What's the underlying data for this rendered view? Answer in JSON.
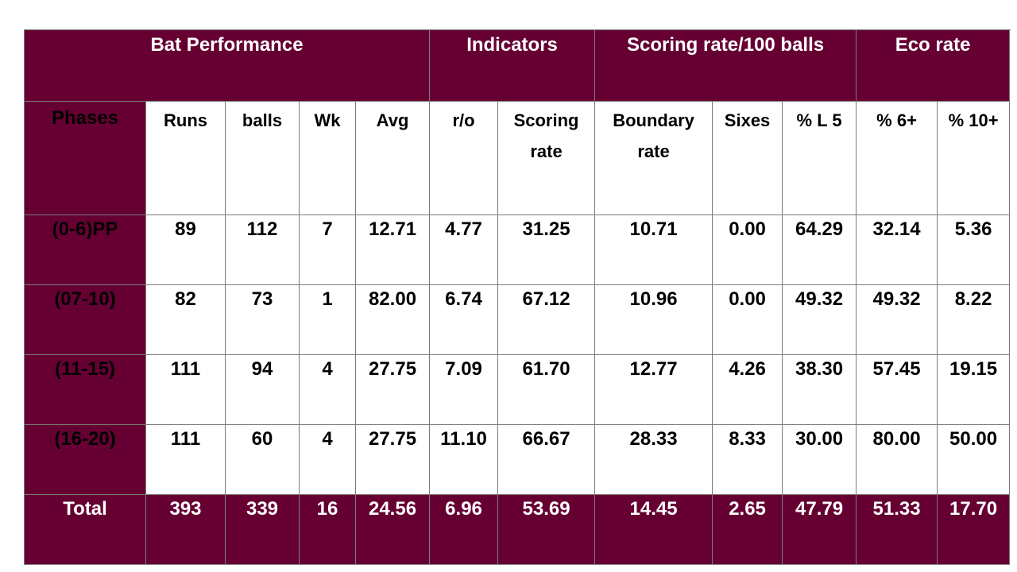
{
  "colors": {
    "header_bg": "#660033",
    "header_text": "#ffffff",
    "body_bg": "#ffffff",
    "body_text": "#000000"
  },
  "group_headers": [
    "Bat Performance",
    "Indicators",
    "Scoring rate/100 balls",
    "Eco rate"
  ],
  "column_headers": [
    "Phases",
    "Runs",
    "balls",
    "Wk",
    "Avg",
    "r/o",
    "Scoring rate",
    "Boundary rate",
    "Sixes",
    "% L 5",
    "% 6+",
    "% 10+"
  ],
  "rows": [
    [
      "(0-6)PP",
      "89",
      "112",
      "7",
      "12.71",
      "4.77",
      "31.25",
      "10.71",
      "0.00",
      "64.29",
      "32.14",
      "5.36"
    ],
    [
      "(07-10)",
      "82",
      "73",
      "1",
      "82.00",
      "6.74",
      "67.12",
      "10.96",
      "0.00",
      "49.32",
      "49.32",
      "8.22"
    ],
    [
      "(11-15)",
      "111",
      "94",
      "4",
      "27.75",
      "7.09",
      "61.70",
      "12.77",
      "4.26",
      "38.30",
      "57.45",
      "19.15"
    ],
    [
      "(16-20)",
      "111",
      "60",
      "4",
      "27.75",
      "11.10",
      "66.67",
      "28.33",
      "8.33",
      "30.00",
      "80.00",
      "50.00"
    ]
  ],
  "total_row": [
    "Total",
    "393",
    "339",
    "16",
    "24.56",
    "6.96",
    "53.69",
    "14.45",
    "2.65",
    "47.79",
    "51.33",
    "17.70"
  ]
}
